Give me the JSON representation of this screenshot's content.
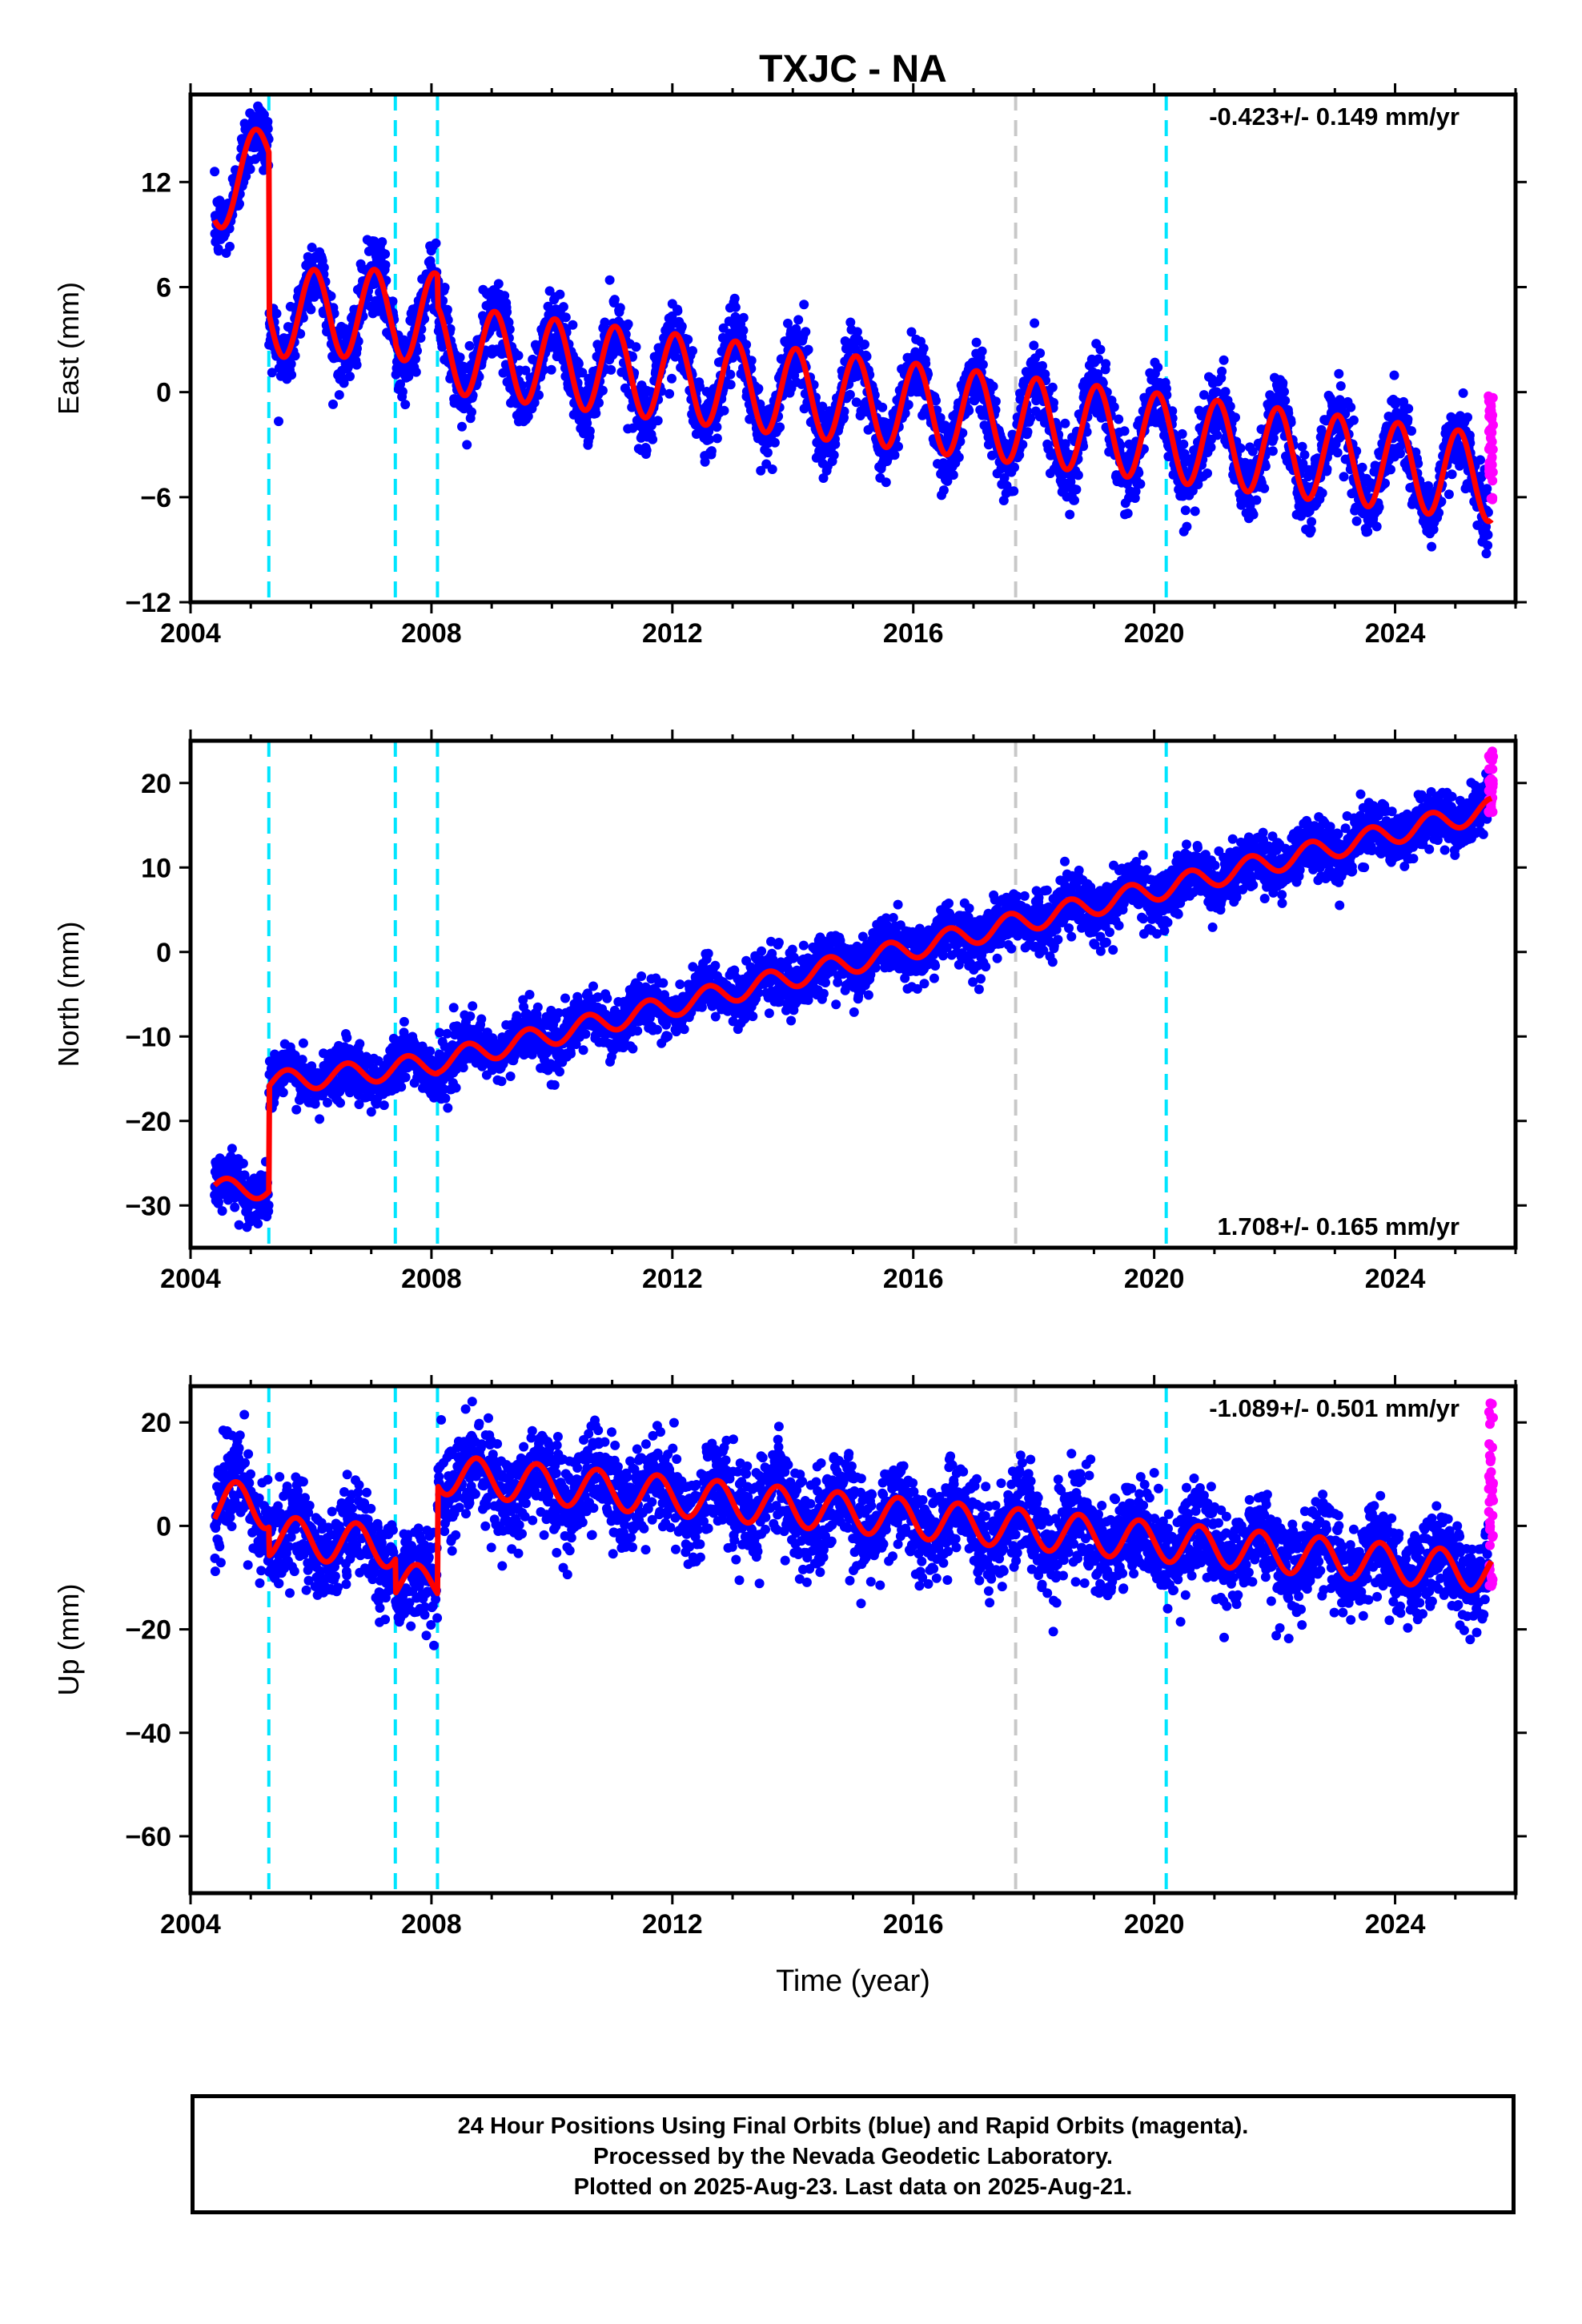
{
  "colors": {
    "final_orbits": "#0000ff",
    "rapid_orbits": "#ff00ff",
    "model": "#ff0000",
    "equipment_change": "#00e5ff",
    "earthquake": "#c8c8c8"
  },
  "chart_data": [
    {
      "type": "scatter",
      "title": "TXJC - NA",
      "ylabel": "East (mm)",
      "xlabel": "",
      "xlim": [
        2004,
        2026
      ],
      "ylim": [
        -12,
        17
      ],
      "xticks": [
        2004,
        2008,
        2012,
        2016,
        2020,
        2024
      ],
      "yticks": [
        -12,
        -6,
        0,
        6,
        12
      ],
      "ytick_labels": [
        "−12",
        "−6",
        "0",
        "6",
        "12"
      ],
      "rate_label": "-0.423+/- 0.149 mm/yr",
      "rate_label_position": "top-right",
      "grid": false,
      "equipment_change_lines": [
        2005.3,
        2007.4,
        2008.1,
        2020.2
      ],
      "earthquake_lines": [
        2017.7
      ],
      "model": {
        "segments": [
          {
            "start": 2004.4,
            "end": 2005.3,
            "offset": 11.0,
            "rate": 3.0,
            "amp": 2.0
          },
          {
            "start": 2005.3,
            "end": 2007.4,
            "offset": 4.5,
            "rate": 0.0,
            "amp": 2.5
          },
          {
            "start": 2007.4,
            "end": 2008.1,
            "offset": 4.3,
            "rate": 0.0,
            "amp": 2.5
          },
          {
            "start": 2008.1,
            "end": 2025.6,
            "offset": 2.5,
            "rate": -0.423,
            "amp": 2.5
          }
        ],
        "phase_peak": 0.05
      },
      "series": [
        {
          "name": "Final Orbits",
          "x_range": [
            2004.4,
            2025.55
          ],
          "scatter_sd": 1.0
        },
        {
          "name": "Rapid Orbits",
          "x_range": [
            2025.55,
            2025.63
          ],
          "y_range": [
            -6.5,
            -0.2
          ]
        }
      ]
    },
    {
      "type": "scatter",
      "title": "",
      "ylabel": "North (mm)",
      "xlabel": "",
      "xlim": [
        2004,
        2026
      ],
      "ylim": [
        -35,
        25
      ],
      "xticks": [
        2004,
        2008,
        2012,
        2016,
        2020,
        2024
      ],
      "yticks": [
        -30,
        -20,
        -10,
        0,
        10,
        20
      ],
      "ytick_labels": [
        "−30",
        "−20",
        "−10",
        "0",
        "10",
        "20"
      ],
      "rate_label": "1.708+/- 0.165 mm/yr",
      "rate_label_position": "bottom-right",
      "grid": false,
      "equipment_change_lines": [
        2005.3,
        2007.4,
        2008.1,
        2020.2
      ],
      "earthquake_lines": [
        2017.7
      ],
      "model": {
        "segments": [
          {
            "start": 2004.4,
            "end": 2005.3,
            "offset": -28.0,
            "rate": 0.0,
            "amp": 1.2
          },
          {
            "start": 2005.3,
            "end": 2007.4,
            "offset": -15.5,
            "rate": 0.8,
            "amp": 1.3
          },
          {
            "start": 2007.4,
            "end": 2008.1,
            "offset": -13.8,
            "rate": 1.0,
            "amp": 1.3
          },
          {
            "start": 2008.1,
            "end": 2025.6,
            "offset": -13.0,
            "rate": 1.708,
            "amp": 1.3
          }
        ],
        "phase_peak": 0.6
      },
      "series": [
        {
          "name": "Final Orbits",
          "x_range": [
            2004.4,
            2025.55
          ],
          "scatter_sd": 1.6
        },
        {
          "name": "Rapid Orbits",
          "x_range": [
            2025.55,
            2025.63
          ],
          "y_range": [
            16,
            24
          ]
        }
      ]
    },
    {
      "type": "scatter",
      "title": "",
      "ylabel": "Up (mm)",
      "xlabel": "Time (year)",
      "xlim": [
        2004,
        2026
      ],
      "ylim": [
        -71,
        27
      ],
      "xticks": [
        2004,
        2008,
        2012,
        2016,
        2020,
        2024
      ],
      "yticks": [
        -60,
        -40,
        -20,
        0,
        20
      ],
      "ytick_labels": [
        "−60",
        "−40",
        "−20",
        "0",
        "20"
      ],
      "rate_label": "-1.089+/- 0.501 mm/yr",
      "rate_label_position": "top-right",
      "grid": false,
      "equipment_change_lines": [
        2005.3,
        2007.4,
        2008.1,
        2020.2
      ],
      "earthquake_lines": [
        2017.7
      ],
      "model": {
        "segments": [
          {
            "start": 2004.4,
            "end": 2005.3,
            "offset": 4.0,
            "rate": 0.0,
            "amp": 4.5
          },
          {
            "start": 2005.3,
            "end": 2007.4,
            "offset": -2.0,
            "rate": -1.0,
            "amp": 4.0
          },
          {
            "start": 2007.4,
            "end": 2008.1,
            "offset": -11.0,
            "rate": 0.0,
            "amp": 3.5
          },
          {
            "start": 2008.1,
            "end": 2025.6,
            "offset": 10.0,
            "rate": -1.089,
            "amp": 3.8
          }
        ],
        "phase_peak": 0.75
      },
      "series": [
        {
          "name": "Final Orbits",
          "x_range": [
            2004.4,
            2025.55
          ],
          "scatter_sd": 4.5
        },
        {
          "name": "Rapid Orbits",
          "x_range": [
            2025.55,
            2025.63
          ],
          "y_range": [
            -12,
            24
          ]
        }
      ]
    }
  ],
  "footer": {
    "line1": "24 Hour Positions Using Final Orbits (blue) and Rapid Orbits (magenta).",
    "line2": "Processed by the Nevada Geodetic Laboratory.",
    "line3": "Plotted on 2025-Aug-23. Last data on 2025-Aug-21."
  }
}
